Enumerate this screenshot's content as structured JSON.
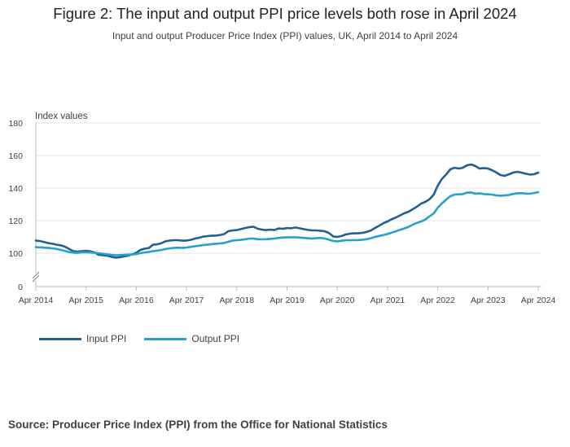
{
  "title": "Figure 2: The input and output PPI price levels both rose in April 2024",
  "subtitle": "Input and output Producer Price Index (PPI) values, UK, April 2014 to April 2024",
  "source": "Source: Producer Price Index (PPI) from the Office for National Statistics",
  "chart_data": {
    "type": "line",
    "title": "Figure 2: The input and output PPI price levels both rose in April 2024",
    "ylabel": "Index values",
    "xlabel": "",
    "ylim": [
      0,
      180
    ],
    "y_break": [
      0,
      90
    ],
    "yticks": [
      0,
      100,
      120,
      140,
      160,
      180
    ],
    "xlim": [
      2014.25,
      2024.25
    ],
    "xticks": [
      {
        "x": 2014.25,
        "label": "Apr 2014"
      },
      {
        "x": 2015.25,
        "label": "Apr 2015"
      },
      {
        "x": 2016.25,
        "label": "Apr 2016"
      },
      {
        "x": 2017.25,
        "label": "Apr 2017"
      },
      {
        "x": 2018.25,
        "label": "Apr 2018"
      },
      {
        "x": 2019.25,
        "label": "Apr 2019"
      },
      {
        "x": 2020.25,
        "label": "Apr 2020"
      },
      {
        "x": 2021.25,
        "label": "Apr 2021"
      },
      {
        "x": 2022.25,
        "label": "Apr 2022"
      },
      {
        "x": 2023.25,
        "label": "Apr 2023"
      },
      {
        "x": 2024.25,
        "label": "Apr 2024"
      }
    ],
    "grid": true,
    "legend_position": "bottom-left",
    "series": [
      {
        "name": "Input PPI",
        "color": "#206095",
        "points": [
          [
            2014.25,
            107.8
          ],
          [
            2014.33,
            107.5
          ],
          [
            2014.42,
            106.8
          ],
          [
            2014.5,
            106.2
          ],
          [
            2014.58,
            105.8
          ],
          [
            2014.67,
            105.2
          ],
          [
            2014.75,
            104.8
          ],
          [
            2014.83,
            104.0
          ],
          [
            2014.92,
            102.5
          ],
          [
            2015.0,
            101.2
          ],
          [
            2015.08,
            101.0
          ],
          [
            2015.17,
            101.3
          ],
          [
            2015.25,
            101.5
          ],
          [
            2015.33,
            101.2
          ],
          [
            2015.42,
            100.5
          ],
          [
            2015.5,
            99.0
          ],
          [
            2015.58,
            98.8
          ],
          [
            2015.67,
            98.5
          ],
          [
            2015.75,
            97.8
          ],
          [
            2015.83,
            97.3
          ],
          [
            2015.92,
            97.5
          ],
          [
            2016.0,
            98.0
          ],
          [
            2016.08,
            98.5
          ],
          [
            2016.17,
            99.3
          ],
          [
            2016.25,
            100.3
          ],
          [
            2016.33,
            102.0
          ],
          [
            2016.42,
            102.8
          ],
          [
            2016.5,
            103.2
          ],
          [
            2016.58,
            105.2
          ],
          [
            2016.67,
            105.5
          ],
          [
            2016.75,
            106.2
          ],
          [
            2016.83,
            107.3
          ],
          [
            2016.92,
            107.8
          ],
          [
            2017.0,
            108.0
          ],
          [
            2017.08,
            108.0
          ],
          [
            2017.17,
            107.7
          ],
          [
            2017.25,
            107.8
          ],
          [
            2017.33,
            108.2
          ],
          [
            2017.42,
            109.0
          ],
          [
            2017.5,
            109.5
          ],
          [
            2017.58,
            110.2
          ],
          [
            2017.67,
            110.5
          ],
          [
            2017.75,
            110.8
          ],
          [
            2017.83,
            110.8
          ],
          [
            2017.92,
            111.2
          ],
          [
            2018.0,
            111.8
          ],
          [
            2018.08,
            113.5
          ],
          [
            2018.17,
            114.0
          ],
          [
            2018.25,
            114.2
          ],
          [
            2018.33,
            114.8
          ],
          [
            2018.42,
            115.5
          ],
          [
            2018.5,
            116.0
          ],
          [
            2018.58,
            116.3
          ],
          [
            2018.67,
            115.0
          ],
          [
            2018.75,
            114.5
          ],
          [
            2018.83,
            114.2
          ],
          [
            2018.92,
            114.5
          ],
          [
            2019.0,
            114.2
          ],
          [
            2019.08,
            115.2
          ],
          [
            2019.17,
            115.0
          ],
          [
            2019.25,
            115.5
          ],
          [
            2019.33,
            115.3
          ],
          [
            2019.42,
            115.8
          ],
          [
            2019.5,
            115.3
          ],
          [
            2019.58,
            114.8
          ],
          [
            2019.67,
            114.3
          ],
          [
            2019.75,
            114.0
          ],
          [
            2019.83,
            114.0
          ],
          [
            2019.92,
            113.8
          ],
          [
            2020.0,
            113.5
          ],
          [
            2020.08,
            112.5
          ],
          [
            2020.17,
            110.3
          ],
          [
            2020.25,
            110.0
          ],
          [
            2020.33,
            110.5
          ],
          [
            2020.42,
            111.5
          ],
          [
            2020.5,
            112.0
          ],
          [
            2020.58,
            112.2
          ],
          [
            2020.67,
            112.3
          ],
          [
            2020.75,
            112.5
          ],
          [
            2020.83,
            113.0
          ],
          [
            2020.92,
            114.0
          ],
          [
            2021.0,
            115.5
          ],
          [
            2021.08,
            116.8
          ],
          [
            2021.17,
            118.5
          ],
          [
            2021.25,
            119.5
          ],
          [
            2021.33,
            120.8
          ],
          [
            2021.42,
            122.0
          ],
          [
            2021.5,
            123.2
          ],
          [
            2021.58,
            124.5
          ],
          [
            2021.67,
            125.5
          ],
          [
            2021.75,
            127.0
          ],
          [
            2021.83,
            128.5
          ],
          [
            2021.92,
            130.5
          ],
          [
            2022.0,
            131.5
          ],
          [
            2022.08,
            133.0
          ],
          [
            2022.17,
            136.0
          ],
          [
            2022.25,
            141.5
          ],
          [
            2022.33,
            145.5
          ],
          [
            2022.42,
            148.5
          ],
          [
            2022.5,
            151.5
          ],
          [
            2022.58,
            152.5
          ],
          [
            2022.67,
            152.0
          ],
          [
            2022.75,
            152.5
          ],
          [
            2022.83,
            154.0
          ],
          [
            2022.92,
            154.5
          ],
          [
            2023.0,
            153.5
          ],
          [
            2023.08,
            152.0
          ],
          [
            2023.17,
            152.3
          ],
          [
            2023.25,
            152.0
          ],
          [
            2023.33,
            151.0
          ],
          [
            2023.42,
            149.5
          ],
          [
            2023.5,
            148.0
          ],
          [
            2023.58,
            147.5
          ],
          [
            2023.67,
            148.5
          ],
          [
            2023.75,
            149.5
          ],
          [
            2023.83,
            150.0
          ],
          [
            2023.92,
            149.5
          ],
          [
            2024.0,
            148.8
          ],
          [
            2024.08,
            148.3
          ],
          [
            2024.17,
            148.5
          ],
          [
            2024.25,
            149.5
          ]
        ]
      },
      {
        "name": "Output PPI",
        "color": "#27a0cc",
        "points": [
          [
            2014.25,
            103.7
          ],
          [
            2014.33,
            103.6
          ],
          [
            2014.42,
            103.4
          ],
          [
            2014.5,
            103.2
          ],
          [
            2014.58,
            103.0
          ],
          [
            2014.67,
            102.6
          ],
          [
            2014.75,
            102.0
          ],
          [
            2014.83,
            101.4
          ],
          [
            2014.92,
            100.7
          ],
          [
            2015.0,
            100.3
          ],
          [
            2015.08,
            100.2
          ],
          [
            2015.17,
            100.5
          ],
          [
            2015.25,
            100.6
          ],
          [
            2015.33,
            100.4
          ],
          [
            2015.42,
            100.2
          ],
          [
            2015.5,
            100.0
          ],
          [
            2015.58,
            99.7
          ],
          [
            2015.67,
            99.3
          ],
          [
            2015.75,
            99.0
          ],
          [
            2015.83,
            98.8
          ],
          [
            2015.92,
            98.8
          ],
          [
            2016.0,
            99.0
          ],
          [
            2016.08,
            99.1
          ],
          [
            2016.17,
            99.2
          ],
          [
            2016.25,
            99.5
          ],
          [
            2016.33,
            100.0
          ],
          [
            2016.42,
            100.5
          ],
          [
            2016.5,
            100.8
          ],
          [
            2016.58,
            101.3
          ],
          [
            2016.67,
            101.6
          ],
          [
            2016.75,
            102.0
          ],
          [
            2016.83,
            102.6
          ],
          [
            2016.92,
            103.0
          ],
          [
            2017.0,
            103.3
          ],
          [
            2017.08,
            103.4
          ],
          [
            2017.17,
            103.3
          ],
          [
            2017.25,
            103.5
          ],
          [
            2017.33,
            103.9
          ],
          [
            2017.42,
            104.3
          ],
          [
            2017.5,
            104.6
          ],
          [
            2017.58,
            105.0
          ],
          [
            2017.67,
            105.3
          ],
          [
            2017.75,
            105.6
          ],
          [
            2017.83,
            105.8
          ],
          [
            2017.92,
            106.0
          ],
          [
            2018.0,
            106.3
          ],
          [
            2018.08,
            107.0
          ],
          [
            2018.17,
            107.8
          ],
          [
            2018.25,
            108.0
          ],
          [
            2018.33,
            108.2
          ],
          [
            2018.42,
            108.6
          ],
          [
            2018.5,
            109.0
          ],
          [
            2018.58,
            109.0
          ],
          [
            2018.67,
            108.6
          ],
          [
            2018.75,
            108.5
          ],
          [
            2018.83,
            108.6
          ],
          [
            2018.92,
            108.8
          ],
          [
            2019.0,
            109.0
          ],
          [
            2019.08,
            109.4
          ],
          [
            2019.17,
            109.6
          ],
          [
            2019.25,
            109.8
          ],
          [
            2019.33,
            109.8
          ],
          [
            2019.42,
            109.8
          ],
          [
            2019.5,
            109.6
          ],
          [
            2019.58,
            109.4
          ],
          [
            2019.67,
            109.2
          ],
          [
            2019.75,
            109.0
          ],
          [
            2019.83,
            109.2
          ],
          [
            2019.92,
            109.4
          ],
          [
            2020.0,
            109.0
          ],
          [
            2020.08,
            108.4
          ],
          [
            2020.17,
            107.5
          ],
          [
            2020.25,
            107.3
          ],
          [
            2020.33,
            107.6
          ],
          [
            2020.42,
            108.0
          ],
          [
            2020.5,
            108.0
          ],
          [
            2020.58,
            108.0
          ],
          [
            2020.67,
            108.1
          ],
          [
            2020.75,
            108.3
          ],
          [
            2020.83,
            108.6
          ],
          [
            2020.92,
            109.2
          ],
          [
            2021.0,
            110.0
          ],
          [
            2021.08,
            110.6
          ],
          [
            2021.17,
            111.2
          ],
          [
            2021.25,
            111.8
          ],
          [
            2021.33,
            112.6
          ],
          [
            2021.42,
            113.5
          ],
          [
            2021.5,
            114.4
          ],
          [
            2021.58,
            115.2
          ],
          [
            2021.67,
            116.2
          ],
          [
            2021.75,
            117.5
          ],
          [
            2021.83,
            118.6
          ],
          [
            2021.92,
            119.5
          ],
          [
            2022.0,
            120.6
          ],
          [
            2022.08,
            122.5
          ],
          [
            2022.17,
            124.5
          ],
          [
            2022.25,
            128.0
          ],
          [
            2022.33,
            130.5
          ],
          [
            2022.42,
            133.0
          ],
          [
            2022.5,
            135.0
          ],
          [
            2022.58,
            136.0
          ],
          [
            2022.67,
            136.2
          ],
          [
            2022.75,
            136.3
          ],
          [
            2022.83,
            137.2
          ],
          [
            2022.92,
            137.3
          ],
          [
            2023.0,
            136.5
          ],
          [
            2023.08,
            136.8
          ],
          [
            2023.17,
            136.3
          ],
          [
            2023.25,
            136.2
          ],
          [
            2023.33,
            136.0
          ],
          [
            2023.42,
            135.5
          ],
          [
            2023.5,
            135.3
          ],
          [
            2023.58,
            135.5
          ],
          [
            2023.67,
            135.8
          ],
          [
            2023.75,
            136.4
          ],
          [
            2023.83,
            136.8
          ],
          [
            2023.92,
            136.9
          ],
          [
            2024.0,
            136.6
          ],
          [
            2024.08,
            136.5
          ],
          [
            2024.17,
            137.0
          ],
          [
            2024.25,
            137.5
          ]
        ]
      }
    ]
  }
}
